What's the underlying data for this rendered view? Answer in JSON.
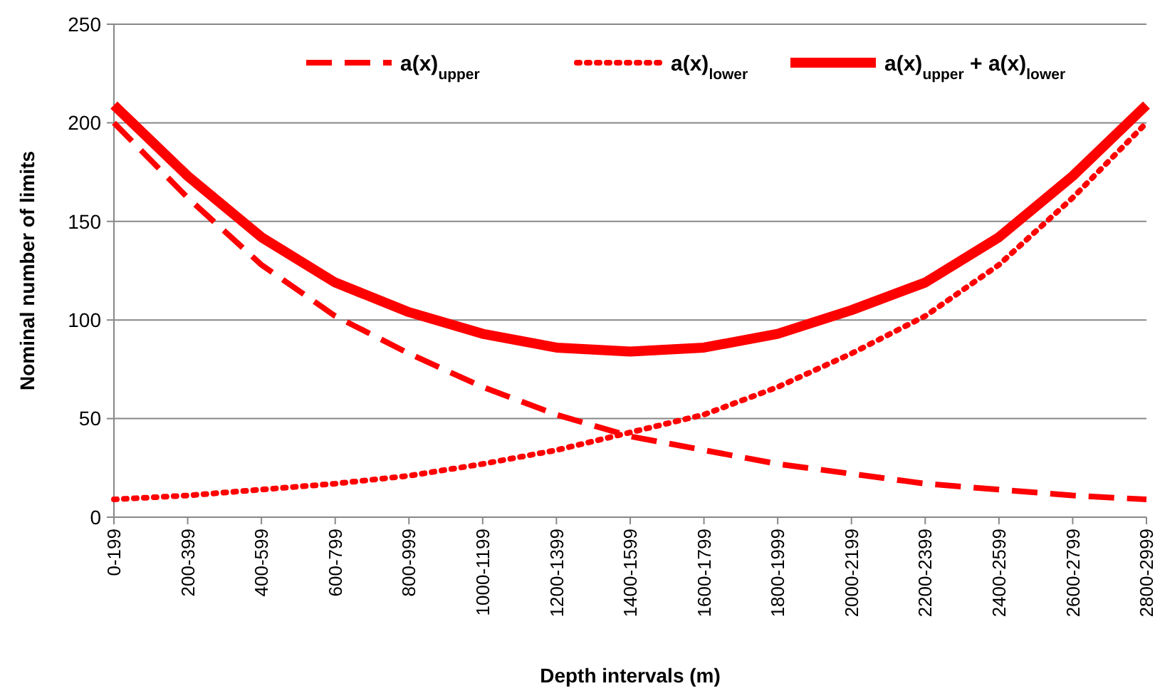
{
  "chart_data": {
    "type": "line",
    "xlabel": "Depth intervals (m)",
    "ylabel": "Nominal number of limits",
    "categories": [
      "0-199",
      "200-399",
      "400-599",
      "600-799",
      "800-999",
      "1000-1199",
      "1200-1399",
      "1400-1599",
      "1600-1799",
      "1800-1999",
      "2000-2199",
      "2200-2399",
      "2400-2599",
      "2600-2799",
      "2800-2999"
    ],
    "series": [
      {
        "name": "a(x)$_{upper}$",
        "color": "#ff0000",
        "line_style": "dashed",
        "values": [
          200,
          162,
          128,
          102,
          83,
          66,
          52,
          41,
          34,
          27,
          22,
          17,
          14,
          11,
          9
        ]
      },
      {
        "name": "a(x)$_{lower}$",
        "color": "#ff0000",
        "line_style": "dotted",
        "values": [
          9,
          11,
          14,
          17,
          21,
          27,
          34,
          43,
          52,
          66,
          83,
          102,
          128,
          162,
          200
        ]
      },
      {
        "name": "a(x)$_{upper}$ + a(x)$_{lower}$",
        "color": "#ff0000",
        "line_style": "solid",
        "values": [
          209,
          173,
          142,
          119,
          104,
          93,
          86,
          84,
          86,
          93,
          105,
          119,
          142,
          173,
          209
        ]
      }
    ],
    "ylim": [
      0,
      250
    ],
    "yticks": [
      0,
      50,
      100,
      150,
      200,
      250
    ],
    "grid": "y",
    "legend": "top",
    "marker": "none"
  }
}
